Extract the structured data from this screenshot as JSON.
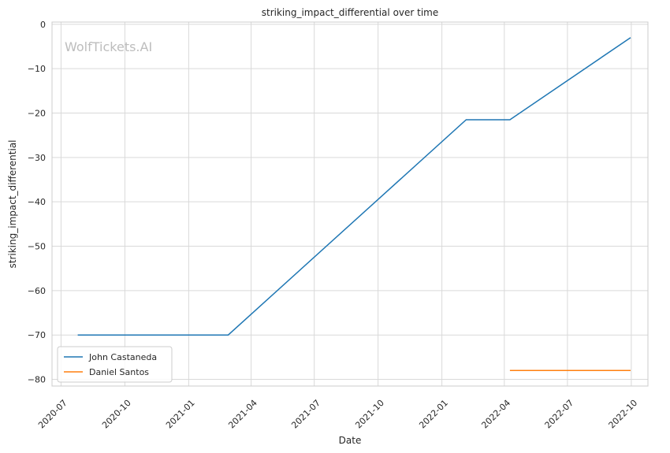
{
  "chart_data": {
    "type": "line",
    "title": "striking_impact_differential over time",
    "xlabel": "Date",
    "ylabel": "striking_impact_differential",
    "watermark": "WolfTickets.AI",
    "x_type": "date",
    "xlim": [
      "2020-06-18",
      "2022-10-25"
    ],
    "ylim": [
      -81.5,
      0.5
    ],
    "x_ticks": [
      "2020-07-01",
      "2020-10-01",
      "2021-01-01",
      "2021-04-01",
      "2021-07-01",
      "2021-10-01",
      "2022-01-01",
      "2022-04-01",
      "2022-07-01",
      "2022-10-01"
    ],
    "x_tick_labels": [
      "2020-07",
      "2020-10",
      "2021-01",
      "2021-04",
      "2021-07",
      "2021-10",
      "2022-01",
      "2022-04",
      "2022-07",
      "2022-10"
    ],
    "y_ticks": [
      0,
      -10,
      -20,
      -30,
      -40,
      -50,
      -60,
      -70,
      -80
    ],
    "y_tick_labels": [
      "0",
      "−10",
      "−20",
      "−30",
      "−40",
      "−50",
      "−60",
      "−70",
      "−80"
    ],
    "grid": true,
    "legend_position": "lower-left",
    "series": [
      {
        "name": "John Castaneda",
        "color": "#1f77b4",
        "points": [
          {
            "x": "2020-07-25",
            "y": -70
          },
          {
            "x": "2021-02-27",
            "y": -70
          },
          {
            "x": "2022-02-05",
            "y": -21.5
          },
          {
            "x": "2022-04-09",
            "y": -21.5
          },
          {
            "x": "2022-09-30",
            "y": -3
          }
        ]
      },
      {
        "name": "Daniel Santos",
        "color": "#ff7f0e",
        "points": [
          {
            "x": "2022-04-09",
            "y": -78
          },
          {
            "x": "2022-09-30",
            "y": -78
          }
        ]
      }
    ]
  }
}
